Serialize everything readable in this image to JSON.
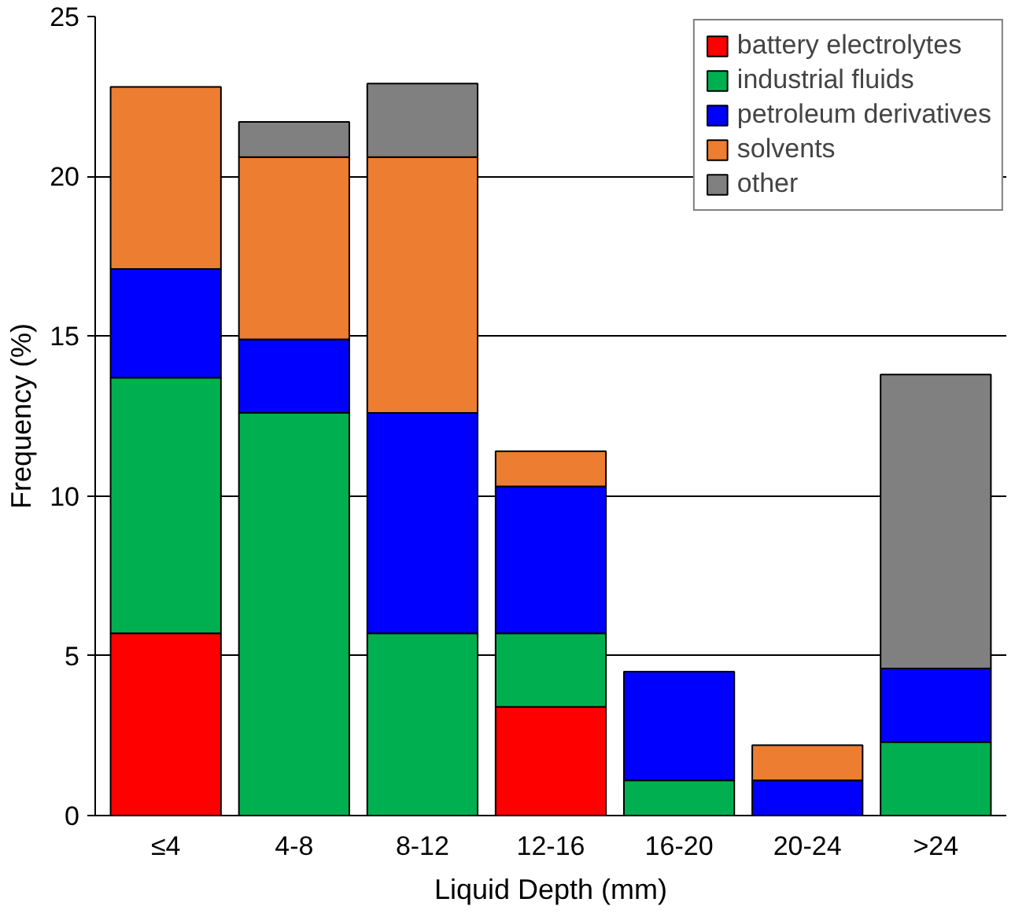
{
  "chart_data": {
    "type": "bar",
    "stacked": true,
    "xlabel": "Liquid Depth (mm)",
    "ylabel": "Frequency (%)",
    "categories": [
      "≤4",
      "4-8",
      "8-12",
      "12-16",
      "16-20",
      "20-24",
      ">24"
    ],
    "series": [
      {
        "name": "battery electrolytes",
        "color": "#ff0000",
        "values": [
          5.7,
          null,
          null,
          3.4,
          null,
          null,
          null
        ]
      },
      {
        "name": "industrial fluids",
        "color": "#00b050",
        "values": [
          8.0,
          12.6,
          5.7,
          2.3,
          1.1,
          null,
          2.3
        ]
      },
      {
        "name": "petroleum derivatives",
        "color": "#0000ff",
        "values": [
          3.4,
          2.3,
          6.9,
          4.6,
          3.4,
          1.1,
          2.3
        ]
      },
      {
        "name": "solvents",
        "color": "#ed7d31",
        "values": [
          5.7,
          5.7,
          8.0,
          1.1,
          null,
          1.1,
          null
        ]
      },
      {
        "name": "other",
        "color": "#808080",
        "values": [
          null,
          1.1,
          2.3,
          null,
          null,
          null,
          9.2
        ]
      }
    ],
    "ylim": [
      0,
      25
    ],
    "yticks": [
      0,
      5,
      10,
      15,
      20,
      25
    ],
    "grid": "y",
    "legend": "top right"
  }
}
